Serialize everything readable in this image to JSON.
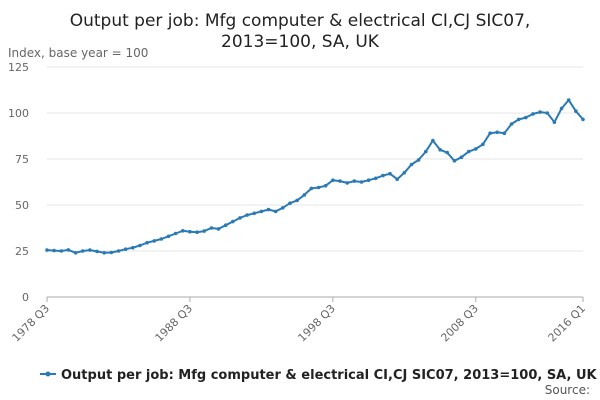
{
  "colors": {
    "series": "#2a7ab6",
    "grid": "#e6e6e6",
    "axis": "#aaaaaa"
  },
  "chart_data": {
    "type": "line",
    "title_lines": [
      "Output per job: Mfg computer & electrical CI,CJ SIC07,",
      "2013=100, SA, UK"
    ],
    "ylabel": "Index, base year = 100",
    "ylim": [
      0,
      125
    ],
    "yticks": [
      0,
      25,
      50,
      75,
      100,
      125
    ],
    "xticks": [
      "1978 Q3",
      "1988 Q3",
      "1998 Q3",
      "2008 Q3",
      "2016 Q1"
    ],
    "x_range": [
      "1978 Q3",
      "2016 Q1"
    ],
    "grid": true,
    "legend_position": "bottom",
    "source_label": "Source:",
    "series": [
      {
        "name": "Output per job: Mfg computer & electrical CI,CJ SIC07, 2013=100, SA, UK",
        "points": [
          [
            "1978 Q3",
            25.5
          ],
          [
            "1979 Q1",
            25.2
          ],
          [
            "1979 Q3",
            25.0
          ],
          [
            "1980 Q1",
            25.6
          ],
          [
            "1980 Q3",
            24.0
          ],
          [
            "1981 Q1",
            25.0
          ],
          [
            "1981 Q3",
            25.5
          ],
          [
            "1982 Q1",
            24.8
          ],
          [
            "1982 Q3",
            24.0
          ],
          [
            "1983 Q1",
            24.2
          ],
          [
            "1983 Q3",
            25.0
          ],
          [
            "1984 Q1",
            26.0
          ],
          [
            "1984 Q3",
            26.8
          ],
          [
            "1985 Q1",
            28.0
          ],
          [
            "1985 Q3",
            29.5
          ],
          [
            "1986 Q1",
            30.5
          ],
          [
            "1986 Q3",
            31.5
          ],
          [
            "1987 Q1",
            33.0
          ],
          [
            "1987 Q3",
            34.5
          ],
          [
            "1988 Q1",
            36.0
          ],
          [
            "1988 Q3",
            35.5
          ],
          [
            "1989 Q1",
            35.2
          ],
          [
            "1989 Q3",
            35.8
          ],
          [
            "1990 Q1",
            37.5
          ],
          [
            "1990 Q3",
            37.0
          ],
          [
            "1991 Q1",
            39.0
          ],
          [
            "1991 Q3",
            41.0
          ],
          [
            "1992 Q1",
            43.0
          ],
          [
            "1992 Q3",
            44.5
          ],
          [
            "1993 Q1",
            45.5
          ],
          [
            "1993 Q3",
            46.5
          ],
          [
            "1994 Q1",
            47.5
          ],
          [
            "1994 Q3",
            46.5
          ],
          [
            "1995 Q1",
            48.5
          ],
          [
            "1995 Q3",
            51.0
          ],
          [
            "1996 Q1",
            52.5
          ],
          [
            "1996 Q3",
            55.5
          ],
          [
            "1997 Q1",
            59.0
          ],
          [
            "1997 Q3",
            59.5
          ],
          [
            "1998 Q1",
            60.5
          ],
          [
            "1998 Q3",
            63.5
          ],
          [
            "1999 Q1",
            63.0
          ],
          [
            "1999 Q3",
            62.0
          ],
          [
            "2000 Q1",
            63.0
          ],
          [
            "2000 Q3",
            62.5
          ],
          [
            "2001 Q1",
            63.5
          ],
          [
            "2001 Q3",
            64.5
          ],
          [
            "2002 Q1",
            66.0
          ],
          [
            "2002 Q3",
            67.0
          ],
          [
            "2003 Q1",
            64.0
          ],
          [
            "2003 Q3",
            67.5
          ],
          [
            "2004 Q1",
            72.0
          ],
          [
            "2004 Q3",
            74.5
          ],
          [
            "2005 Q1",
            79.0
          ],
          [
            "2005 Q3",
            85.0
          ],
          [
            "2006 Q1",
            80.0
          ],
          [
            "2006 Q3",
            78.5
          ],
          [
            "2007 Q1",
            74.0
          ],
          [
            "2007 Q3",
            76.0
          ],
          [
            "2008 Q1",
            79.0
          ],
          [
            "2008 Q3",
            80.5
          ],
          [
            "2009 Q1",
            83.0
          ],
          [
            "2009 Q3",
            89.0
          ],
          [
            "2010 Q1",
            89.5
          ],
          [
            "2010 Q3",
            89.0
          ],
          [
            "2011 Q1",
            94.0
          ],
          [
            "2011 Q3",
            96.5
          ],
          [
            "2012 Q1",
            97.5
          ],
          [
            "2012 Q3",
            99.5
          ],
          [
            "2013 Q1",
            100.5
          ],
          [
            "2013 Q3",
            100.0
          ],
          [
            "2014 Q1",
            95.0
          ],
          [
            "2014 Q3",
            102.5
          ],
          [
            "2015 Q1",
            107.0
          ],
          [
            "2015 Q3",
            101.0
          ],
          [
            "2016 Q1",
            96.5
          ]
        ]
      }
    ]
  }
}
